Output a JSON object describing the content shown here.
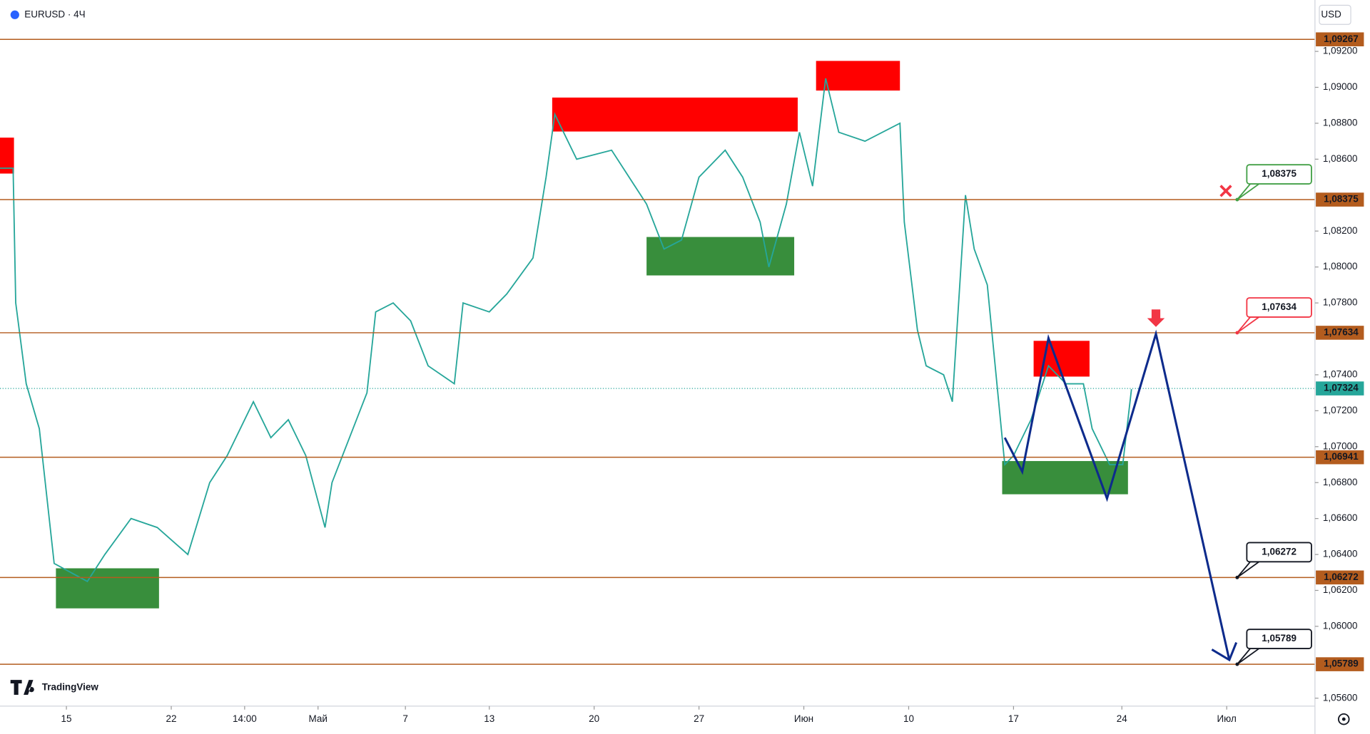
{
  "chart_data": {
    "type": "line",
    "title": "EURUSD · 4Ч",
    "currency": "USD",
    "brand": "TradingView",
    "xlim": [
      0,
      376.25
    ],
    "ylim": [
      1.05556,
      1.09486
    ],
    "xticks": [
      {
        "value": 19,
        "label": "15"
      },
      {
        "value": 49,
        "label": "22"
      },
      {
        "value": 70,
        "label": "14:00"
      },
      {
        "value": 91,
        "label": "Май"
      },
      {
        "value": 116,
        "label": "7"
      },
      {
        "value": 140,
        "label": "13"
      },
      {
        "value": 170,
        "label": "20"
      },
      {
        "value": 200,
        "label": "27"
      },
      {
        "value": 230,
        "label": "Июн"
      },
      {
        "value": 260,
        "label": "10"
      },
      {
        "value": 290,
        "label": "17"
      },
      {
        "value": 321,
        "label": "24"
      },
      {
        "value": 351,
        "label": "Июл"
      }
    ],
    "yticks": [
      {
        "value": 1.092,
        "label": "1,09200"
      },
      {
        "value": 1.09,
        "label": "1,09000"
      },
      {
        "value": 1.088,
        "label": "1,08800"
      },
      {
        "value": 1.086,
        "label": "1,08600"
      },
      {
        "value": 1.082,
        "label": "1,08200"
      },
      {
        "value": 1.08,
        "label": "1,08000"
      },
      {
        "value": 1.078,
        "label": "1,07800"
      },
      {
        "value": 1.074,
        "label": "1,07400"
      },
      {
        "value": 1.072,
        "label": "1,07200"
      },
      {
        "value": 1.07,
        "label": "1,07000"
      },
      {
        "value": 1.068,
        "label": "1,06800"
      },
      {
        "value": 1.066,
        "label": "1,06600"
      },
      {
        "value": 1.064,
        "label": "1,06400"
      },
      {
        "value": 1.062,
        "label": "1,06200"
      },
      {
        "value": 1.06,
        "label": "1,06000"
      },
      {
        "value": 1.056,
        "label": "1,05600"
      }
    ],
    "series": [
      {
        "name": "EURUSD",
        "color": "#26a69a",
        "x": [
          0,
          3.75,
          4.5,
          7.5,
          11.25,
          15.5,
          25,
          30,
          37.5,
          45,
          53.75,
          60,
          65,
          72.5,
          77.5,
          82.5,
          87.5,
          93,
          95,
          100,
          105,
          107.5,
          112.5,
          117.5,
          122.5,
          130,
          132.5,
          140,
          145,
          152.5,
          156.25,
          158.75,
          165,
          175,
          185,
          190,
          195,
          200,
          207.5,
          212.5,
          217.5,
          220,
          225,
          228.75,
          232.5,
          236.25,
          240,
          247.5,
          257.5,
          258.75,
          262.5,
          265,
          270,
          272.5,
          276.25,
          278.75,
          282.5,
          285,
          287.5,
          290,
          295,
          300,
          305,
          310,
          312.5,
          317.5,
          321.25,
          323.75
        ],
        "values": [
          1.0855,
          1.0855,
          1.078,
          1.0735,
          1.071,
          1.0635,
          1.0625,
          1.064,
          1.066,
          1.0655,
          1.064,
          1.068,
          1.0695,
          1.0725,
          1.0705,
          1.0715,
          1.0695,
          1.0655,
          1.068,
          1.0705,
          1.073,
          1.0775,
          1.078,
          1.077,
          1.0745,
          1.0735,
          1.078,
          1.0775,
          1.0785,
          1.0805,
          1.085,
          1.0885,
          1.086,
          1.0865,
          1.0835,
          1.081,
          1.0815,
          1.085,
          1.0865,
          1.085,
          1.0825,
          1.08,
          1.0835,
          1.0875,
          1.0845,
          1.0905,
          1.0875,
          1.087,
          1.088,
          1.0825,
          1.0765,
          1.0745,
          1.074,
          1.0725,
          1.084,
          1.081,
          1.079,
          1.074,
          1.069,
          1.0695,
          1.0715,
          1.0745,
          1.0735,
          1.0735,
          1.071,
          1.069,
          1.069,
          1.0732
        ]
      }
    ],
    "current_price": {
      "value": 1.07324,
      "label": "1,07324",
      "color": "#26a69a"
    },
    "levels": [
      {
        "value": 1.09267,
        "label": "1,09267"
      },
      {
        "value": 1.08375,
        "label": "1,08375",
        "callout_color": "#43a047"
      },
      {
        "value": 1.07634,
        "label": "1,07634",
        "callout_color": "#f23645"
      },
      {
        "value": 1.06941,
        "label": "1,06941"
      },
      {
        "value": 1.06272,
        "label": "1,06272",
        "callout_color": "#131722"
      },
      {
        "value": 1.05789,
        "label": "1,05789",
        "callout_color": "#131722"
      }
    ],
    "level_color": "#b35c1e",
    "zones": [
      {
        "x": [
          0,
          4
        ],
        "y": [
          1.0852,
          1.0872
        ],
        "color": "#ff0000"
      },
      {
        "x": [
          158,
          228.25
        ],
        "y": [
          1.08754,
          1.08943
        ],
        "color": "#ff0000"
      },
      {
        "x": [
          233.5,
          257.5
        ],
        "y": [
          1.08982,
          1.09147
        ],
        "color": "#ff0000"
      },
      {
        "x": [
          295.75,
          311.75
        ],
        "y": [
          1.0739,
          1.07589
        ],
        "color": "#ff0000"
      },
      {
        "x": [
          16,
          45.5
        ],
        "y": [
          1.061,
          1.06323
        ],
        "color": "#388e3c"
      },
      {
        "x": [
          185,
          227.25
        ],
        "y": [
          1.07953,
          1.08167
        ],
        "color": "#388e3c"
      },
      {
        "x": [
          286.75,
          322.75
        ],
        "y": [
          1.06735,
          1.0692
        ],
        "color": "#388e3c"
      }
    ],
    "projection": {
      "color": "#0d2b8c",
      "x": [
        287.5,
        292.5,
        300,
        316.75,
        330.75,
        351.75
      ],
      "values": [
        1.0705,
        1.06861,
        1.07604,
        1.06711,
        1.07628,
        1.05813
      ]
    }
  }
}
